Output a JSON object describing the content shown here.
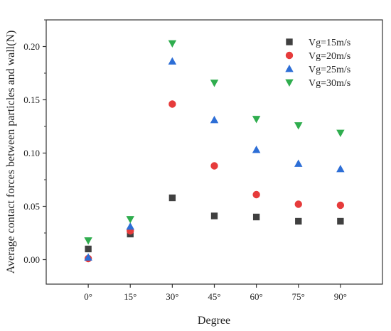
{
  "chart_data": {
    "type": "scatter",
    "xlabel": "Degree",
    "ylabel": "Average contact forces between particles and wall(N)",
    "categories": [
      "0°",
      "15°",
      "30°",
      "45°",
      "60°",
      "75°",
      "90°"
    ],
    "x": [
      0,
      15,
      30,
      45,
      60,
      75,
      90
    ],
    "xlim": [
      -15,
      105
    ],
    "ylim": [
      -0.023,
      0.225
    ],
    "yticks": [
      "0.00",
      "0.05",
      "0.10",
      "0.15",
      "0.20"
    ],
    "ytick_values": [
      0,
      0.05,
      0.1,
      0.15,
      0.2
    ],
    "legend_position": "top-right",
    "grid": false,
    "series": [
      {
        "name": "Vg=15m/s",
        "marker": "square",
        "color": "#404040",
        "values": [
          0.01,
          0.024,
          0.058,
          0.041,
          0.04,
          0.036,
          0.036
        ]
      },
      {
        "name": "Vg=20m/s",
        "marker": "circle",
        "color": "#e63b3b",
        "values": [
          0.001,
          0.027,
          0.146,
          0.088,
          0.061,
          0.052,
          0.051
        ]
      },
      {
        "name": "Vg=25m/s",
        "marker": "triangle-up",
        "color": "#2d6ed6",
        "values": [
          0.002,
          0.031,
          0.186,
          0.131,
          0.103,
          0.09,
          0.085
        ]
      },
      {
        "name": "Vg=30m/s",
        "marker": "triangle-down",
        "color": "#2fad4e",
        "values": [
          0.018,
          0.038,
          0.203,
          0.166,
          0.132,
          0.126,
          0.119
        ]
      }
    ]
  }
}
